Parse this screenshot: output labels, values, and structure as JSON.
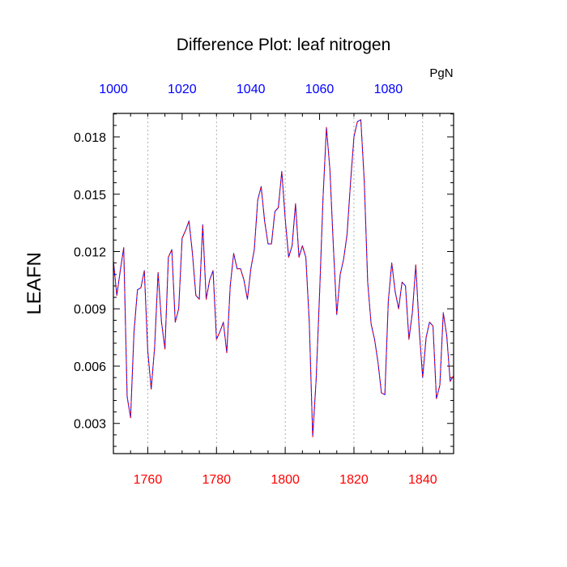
{
  "chart_data": {
    "type": "line",
    "title": "Difference Plot: leaf nitrogen",
    "ylabel": "LEAFN",
    "top_axis_unit": "PgN",
    "x": [
      1750,
      1751,
      1752,
      1753,
      1754,
      1755,
      1756,
      1757,
      1758,
      1759,
      1760,
      1761,
      1762,
      1763,
      1764,
      1765,
      1766,
      1767,
      1768,
      1769,
      1770,
      1771,
      1772,
      1773,
      1774,
      1775,
      1776,
      1777,
      1778,
      1779,
      1780,
      1781,
      1782,
      1783,
      1784,
      1785,
      1786,
      1787,
      1788,
      1789,
      1790,
      1791,
      1792,
      1793,
      1794,
      1795,
      1796,
      1797,
      1798,
      1799,
      1800,
      1801,
      1802,
      1803,
      1804,
      1805,
      1806,
      1807,
      1808,
      1809,
      1810,
      1811,
      1812,
      1813,
      1814,
      1815,
      1816,
      1817,
      1818,
      1819,
      1820,
      1821,
      1822,
      1823,
      1824,
      1825,
      1826,
      1827,
      1828,
      1829,
      1830,
      1831,
      1832,
      1833,
      1834,
      1835,
      1836,
      1837,
      1838,
      1839,
      1840,
      1841,
      1842,
      1843,
      1844,
      1845,
      1846,
      1847,
      1848,
      1849
    ],
    "series": [
      {
        "values": [
          0.0115,
          0.0097,
          0.011,
          0.0122,
          0.0044,
          0.0033,
          0.0078,
          0.01,
          0.0101,
          0.011,
          0.0068,
          0.0048,
          0.007,
          0.0109,
          0.0083,
          0.0069,
          0.0117,
          0.0121,
          0.0083,
          0.009,
          0.0127,
          0.0131,
          0.0136,
          0.0119,
          0.0097,
          0.0095,
          0.0134,
          0.0095,
          0.0105,
          0.011,
          0.0074,
          0.0078,
          0.0083,
          0.0067,
          0.0102,
          0.0119,
          0.0111,
          0.0111,
          0.0105,
          0.0095,
          0.0111,
          0.0121,
          0.0147,
          0.0154,
          0.0136,
          0.0124,
          0.0124,
          0.0141,
          0.0143,
          0.0162,
          0.0137,
          0.0117,
          0.0123,
          0.0145,
          0.0117,
          0.0123,
          0.0117,
          0.0083,
          0.0023,
          0.0053,
          0.0098,
          0.0148,
          0.0185,
          0.0163,
          0.0123,
          0.0087,
          0.0108,
          0.0116,
          0.0129,
          0.0156,
          0.018,
          0.0188,
          0.0189,
          0.0157,
          0.0104,
          0.0082,
          0.0074,
          0.0062,
          0.0046,
          0.0045,
          0.0094,
          0.0114,
          0.0099,
          0.009,
          0.0104,
          0.0102,
          0.0074,
          0.0088,
          0.0113,
          0.0079,
          0.0054,
          0.0075,
          0.0083,
          0.0081,
          0.0043,
          0.005,
          0.0088,
          0.0076,
          0.0052,
          0.0055
        ]
      }
    ],
    "xlim": [
      1750,
      1849
    ],
    "ylim": [
      0.00142,
      0.01923
    ],
    "bottom_ticks": [
      "1760",
      "1780",
      "1800",
      "1820",
      "1840"
    ],
    "bottom_tick_values": [
      1760,
      1780,
      1800,
      1820,
      1840
    ],
    "left_ticks": [
      "0.003",
      "0.006",
      "0.009",
      "0.012",
      "0.015",
      "0.018"
    ],
    "left_tick_values": [
      0.003,
      0.006,
      0.009,
      0.012,
      0.015,
      0.018
    ],
    "top_ticks": [
      "1000",
      "1020",
      "1040",
      "1060",
      "1080"
    ],
    "top_tick_values": [
      1000,
      1020,
      1040,
      1060,
      1080
    ],
    "top_axis_range": [
      1000,
      1099
    ],
    "grid": "vertical dotted at major x ticks",
    "colors": {
      "line_primary": "#0000ff",
      "line_secondary": "#ff0000",
      "bottom_tick_labels": "#ff0000",
      "top_tick_labels": "#0000ff",
      "grid": "#9a9a9a",
      "frame": "#000000"
    }
  }
}
